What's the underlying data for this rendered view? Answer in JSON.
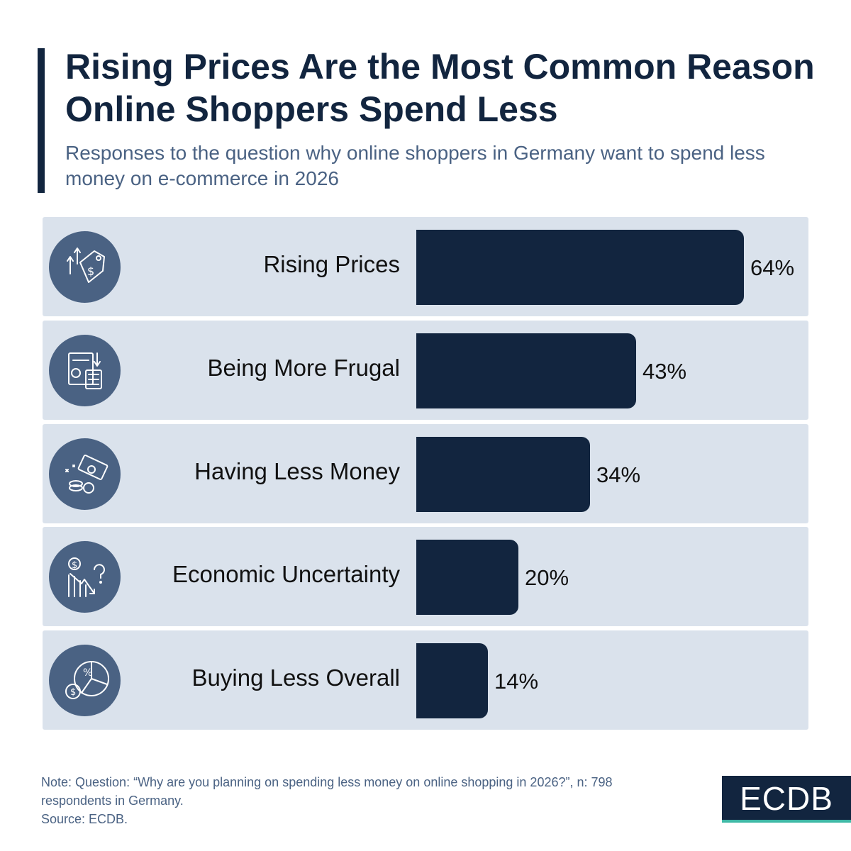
{
  "header": {
    "title": "Rising Prices Are the Most Common Reason Online Shoppers Spend Less",
    "subtitle": "Responses to the question why online shoppers in Germany want to spend less money on e-commerce in 2026"
  },
  "chart_data": {
    "type": "bar",
    "orientation": "horizontal",
    "title": "Rising Prices Are the Most Common Reason Online Shoppers Spend Less",
    "subtitle": "Responses to the question why online shoppers in Germany want to spend less money on e-commerce in 2026",
    "categories": [
      "Rising Prices",
      "Being More Frugal",
      "Having Less Money",
      "Economic Uncertainty",
      "Buying Less Overall"
    ],
    "values": [
      64,
      43,
      34,
      20,
      14
    ],
    "value_labels": [
      "64%",
      "43%",
      "34%",
      "20%",
      "14%"
    ],
    "icons": [
      "rising-price-tag-icon",
      "budget-calculator-icon",
      "money-coins-icon",
      "uncertainty-chart-icon",
      "pie-chart-money-icon"
    ],
    "unit": "%",
    "xlabel": "",
    "ylabel": "",
    "xlim": [
      0,
      64
    ]
  },
  "footer": {
    "note": "Note: Question: “Why are you planning on spending less money on online shopping in 2026?”, n: 798 respondents in Germany.",
    "source": "Source: ECDB."
  },
  "logo": {
    "text": "ECDB"
  },
  "colors": {
    "bar": "#12253f",
    "row_background": "#dae2ec",
    "icon_circle": "#4a6283",
    "accent": "#3fb9a6"
  }
}
